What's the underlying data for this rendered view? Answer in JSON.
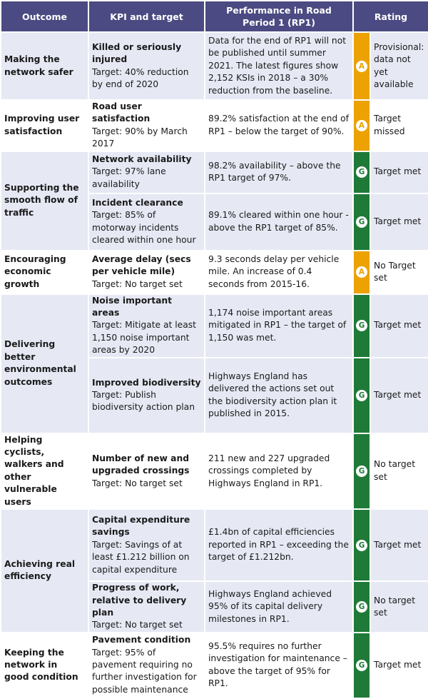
{
  "header": {
    "outcome": "Outcome",
    "kpi": "KPI and target",
    "performance": "Performance in Road Period 1 (RP1)",
    "rating": "Rating"
  },
  "colors": {
    "header": "#4b4a82",
    "shade": "#e6e9f4",
    "amber": "#eba202",
    "green": "#1f7a37"
  },
  "outcomes": [
    {
      "outcome": "Making the network safer",
      "kpis": [
        {
          "name": "Killed or seriously injured",
          "target": "Target: 40% reduction by end of 2020",
          "performance": "Data for the end of RP1 will not be published until summer 2021. The latest figures show 2,152 KSIs in 2018 – a 30% reduction from the baseline.",
          "badge": "A",
          "status": "amber",
          "rating": "Provisional: data not yet available"
        }
      ]
    },
    {
      "outcome": "Improving user satisfaction",
      "kpis": [
        {
          "name": "Road user satisfaction",
          "target": "Target: 90% by March 2017",
          "performance": "89.2% satisfaction at the end of RP1 – below the target of 90%.",
          "badge": "A",
          "status": "amber",
          "rating": "Target missed"
        }
      ]
    },
    {
      "outcome": "Supporting the smooth flow of traffic",
      "kpis": [
        {
          "name": "Network availability",
          "target": "Target: 97% lane availability",
          "performance": "98.2% availability – above the RP1 target of 97%.",
          "badge": "G",
          "status": "green",
          "rating": "Target met"
        },
        {
          "name": "Incident clearance",
          "target": "Target: 85% of motorway incidents cleared within one hour",
          "performance": "89.1% cleared within one hour - above the RP1 target of 85%.",
          "badge": "G",
          "status": "green",
          "rating": "Target met"
        }
      ]
    },
    {
      "outcome": "Encouraging economic growth",
      "kpis": [
        {
          "name": "Average delay (secs per vehicle mile)",
          "target": "Target: No target set",
          "performance": "9.3 seconds delay per vehicle mile. An increase of 0.4 seconds from 2015-16.",
          "badge": "A",
          "status": "amber",
          "rating": "No Target set"
        }
      ]
    },
    {
      "outcome": "Delivering better environmental outcomes",
      "kpis": [
        {
          "name": "Noise important areas",
          "target": "Target: Mitigate at least 1,150 noise important areas by 2020",
          "performance": "1,174 noise important areas mitigated in RP1 – the target of 1,150 was met.",
          "badge": "G",
          "status": "green",
          "rating": "Target met"
        },
        {
          "name": "Improved biodiversity",
          "target": "Target: Publish biodiversity action plan",
          "performance": "Highways England has delivered the actions set out the biodiversity action plan it published in 2015.",
          "badge": "G",
          "status": "green",
          "rating": "Target met"
        }
      ]
    },
    {
      "outcome": "Helping cyclists, walkers and other vulnerable users",
      "kpis": [
        {
          "name": "Number of new and upgraded crossings",
          "target": "Target: No target set",
          "performance": "211 new and 227 upgraded crossings completed by Highways England in RP1.",
          "badge": "G",
          "status": "green",
          "rating": "No target set"
        }
      ]
    },
    {
      "outcome": "Achieving real efficiency",
      "kpis": [
        {
          "name": "Capital expenditure savings",
          "target": "Target: Savings of at least £1.212 billion on capital expenditure",
          "performance": "£1.4bn of capital efficiencies reported in RP1 – exceeding the target of £1.212bn.",
          "badge": "G",
          "status": "green",
          "rating": "Target met"
        },
        {
          "name": "Progress of work, relative to delivery plan",
          "target": "Target: No target set",
          "performance": "Highways England achieved 95% of its capital delivery milestones in RP1.",
          "badge": "G",
          "status": "green",
          "rating": "No target set"
        }
      ]
    },
    {
      "outcome": "Keeping the network in good condition",
      "kpis": [
        {
          "name": "Pavement condition",
          "target": "Target: 95% of pavement requiring no further investigation for possible maintenance",
          "performance": "95.5% requires no further investigation for maintenance – above the target of 95% for RP1.",
          "badge": "G",
          "status": "green",
          "rating": "Target met"
        }
      ]
    }
  ]
}
